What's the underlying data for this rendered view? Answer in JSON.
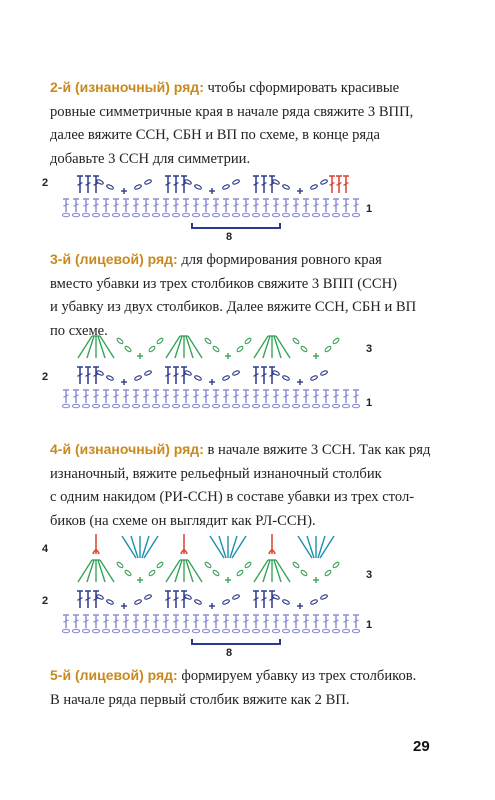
{
  "paragraphs": [
    {
      "heading": "2-й (изнаночный) ряд:",
      "lines": [
        " чтобы сформировать красивые",
        "ровные симметричные края в начале ряда свяжите 3 ВПП,",
        "далее вяжите ССН, СБН и ВП по схеме, в конце ряда",
        "добавьте 3 ССН для симметрии."
      ]
    },
    {
      "heading": "3-й (лицевой) ряд:",
      "lines": [
        " для формирования ровного края",
        "вместо убавки из трех столбиков свяжите 3 ВПП (ССН)",
        "и убавку из двух столбиков. Далее вяжите ССН, СБН и ВП",
        "по схеме."
      ]
    },
    {
      "heading": "4-й (изнаночный) ряд:",
      "lines": [
        " в начале вяжите 3 ССН. Так как ряд",
        "изнаночный, вяжите рельефный изнаночный столбик",
        "с одним накидом (РИ-ССН) в составе убавки из трех стол-",
        "биков (на схеме он выглядит как РЛ-ССН)."
      ]
    },
    {
      "heading": "5-й (лицевой) ряд:",
      "lines": [
        " формируем убавку из трех столбиков.",
        "В начале ряда первый столбик вяжите как 2 ВП."
      ]
    }
  ],
  "diagrams": [
    {
      "row_labels": {
        "left": [
          "2"
        ],
        "right": [
          "1"
        ]
      },
      "repeat_label": "8"
    },
    {
      "row_labels": {
        "left": [
          "2"
        ],
        "right": [
          "3",
          "1"
        ]
      },
      "repeat_label": ""
    },
    {
      "row_labels": {
        "left": [
          "4",
          "2"
        ],
        "right": [
          "3",
          "1"
        ]
      },
      "repeat_label": "8"
    }
  ],
  "colors": {
    "heading": "#c88a1e",
    "row1": "#8a8fd6",
    "row2": "#2b3a8c",
    "row3": "#3aa55a",
    "row4": "#1d8fb0",
    "edge": "#d8402f",
    "bracket": "#2b3a8c"
  },
  "page_number": "29"
}
